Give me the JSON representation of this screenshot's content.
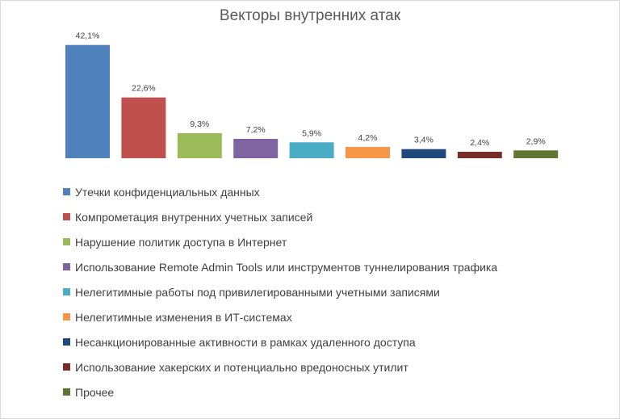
{
  "chart_data": {
    "type": "bar",
    "title": "Векторы внутренних атак",
    "xlabel": "",
    "ylabel": "",
    "ylim": [
      0,
      45
    ],
    "grid": false,
    "legend_position": "bottom",
    "categories": [
      "Утечки конфиденциальных  данных",
      "Компрометация внутренних  учетных записей",
      "Нарушение  политик доступа в Интернет",
      "Использование  Remote Admin Tools или инструментов  туннелирования  трафика",
      "Нелегитимные  работы под привилегированными  учетными записями",
      "Нелегитимные изменения  в ИТ-системах",
      "Несанкционированные   активности в рамках удаленного доступа",
      "Использование  хакерских и потенциально вредоносных  утилит",
      "Прочее"
    ],
    "values": [
      42.1,
      22.6,
      9.3,
      7.2,
      5.9,
      4.2,
      3.4,
      2.4,
      2.9
    ],
    "value_labels": [
      "42,1%",
      "22,6%",
      "9,3%",
      "7,2%",
      "5,9%",
      "4,2%",
      "3,4%",
      "2,4%",
      "2,9%"
    ],
    "colors": [
      "#4f81bd",
      "#c0504d",
      "#9bbb59",
      "#8064a2",
      "#4bacc6",
      "#f79646",
      "#1f497d",
      "#772c2a",
      "#5f7530"
    ]
  }
}
